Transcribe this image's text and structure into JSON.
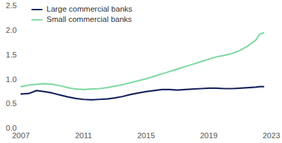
{
  "chart_data": {
    "type": "line",
    "x": [
      2007,
      2007.5,
      2008,
      2008.5,
      2009,
      2009.5,
      2010,
      2010.5,
      2011,
      2011.5,
      2012,
      2012.5,
      2013,
      2013.5,
      2014,
      2014.5,
      2015,
      2015.5,
      2016,
      2016.5,
      2017,
      2017.5,
      2018,
      2018.5,
      2019,
      2019.5,
      2020,
      2020.5,
      2021,
      2021.5,
      2022,
      2022.25,
      2022.5
    ],
    "series": [
      {
        "name": "Large commercial banks",
        "color": "#16215c",
        "values": [
          0.7,
          0.71,
          0.77,
          0.75,
          0.72,
          0.68,
          0.64,
          0.61,
          0.59,
          0.58,
          0.59,
          0.6,
          0.62,
          0.65,
          0.69,
          0.72,
          0.75,
          0.77,
          0.79,
          0.79,
          0.78,
          0.79,
          0.8,
          0.81,
          0.82,
          0.82,
          0.81,
          0.81,
          0.82,
          0.83,
          0.84,
          0.85,
          0.85
        ]
      },
      {
        "name": "Small commercial banks",
        "color": "#7fd9a1",
        "values": [
          0.85,
          0.88,
          0.9,
          0.91,
          0.9,
          0.87,
          0.83,
          0.8,
          0.79,
          0.8,
          0.81,
          0.83,
          0.86,
          0.89,
          0.93,
          0.97,
          1.01,
          1.06,
          1.11,
          1.16,
          1.21,
          1.26,
          1.31,
          1.36,
          1.41,
          1.46,
          1.49,
          1.53,
          1.59,
          1.68,
          1.8,
          1.92,
          1.95
        ]
      }
    ],
    "xlim": [
      2007,
      2023
    ],
    "xticks": [
      2007,
      2011,
      2015,
      2019,
      2023
    ],
    "ylim": [
      0,
      2.5
    ],
    "yticks": [
      {
        "value": 0,
        "label": "0.0"
      },
      0.5,
      {
        "value": 1,
        "label": "1.0"
      },
      1.5,
      {
        "value": 2,
        "label": "2.0"
      },
      2.5
    ],
    "grid": false,
    "legend": "top-left"
  }
}
